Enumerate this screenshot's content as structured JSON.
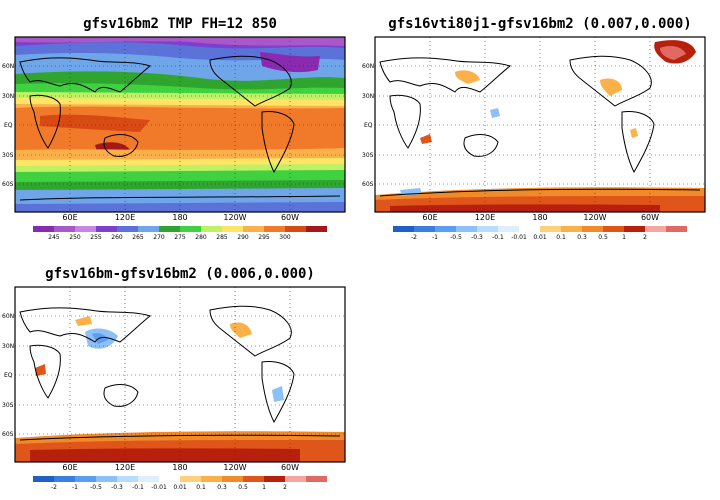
{
  "panels": [
    {
      "title": "gfsv16bm2  TMP  FH=12  850",
      "lat_labels": [
        "60N",
        "30N",
        "EQ",
        "30S",
        "60S"
      ],
      "lon_labels": [
        "60E",
        "120E",
        "180",
        "120W",
        "60W"
      ],
      "colorbar": {
        "labels": [
          "245",
          "250",
          "255",
          "260",
          "265",
          "270",
          "275",
          "280",
          "285",
          "290",
          "295",
          "300"
        ],
        "colors": [
          "#8a2ab0",
          "#a958c8",
          "#c488e0",
          "#7d3fcf",
          "#5b72d8",
          "#6fa6ea",
          "#2fa52f",
          "#3fd13f",
          "#bff066",
          "#ffe566",
          "#fbb04a",
          "#f07a2a",
          "#d84a14",
          "#a41818"
        ]
      }
    },
    {
      "title": "gfs16vti80j1-gfsv16bm2  (0.007,0.000)",
      "lat_labels": [
        "60N",
        "30N",
        "EQ",
        "30S",
        "60S"
      ],
      "lon_labels": [
        "60E",
        "120E",
        "180",
        "120W",
        "60W"
      ],
      "colorbar": {
        "labels": [
          "-2",
          "-1",
          "-0.5",
          "-0.3",
          "-0.1",
          "-0.01",
          "0.01",
          "0.1",
          "0.3",
          "0.5",
          "1",
          "2"
        ],
        "colors": [
          "#1f5fc8",
          "#3a7fe0",
          "#5a9ef0",
          "#8cc0f6",
          "#b8dcfb",
          "#ddeefd",
          "#ffffff",
          "#ffd07a",
          "#fbb048",
          "#f08a2a",
          "#e0551a",
          "#b8200e",
          "#f4a6a0",
          "#e06a62"
        ]
      }
    },
    {
      "title": "gfsv16bm-gfsv16bm2  (0.006,0.000)",
      "lat_labels": [
        "60N",
        "30N",
        "EQ",
        "30S",
        "60S"
      ],
      "lon_labels": [
        "60E",
        "120E",
        "180",
        "120W",
        "60W"
      ],
      "colorbar": {
        "labels": [
          "-2",
          "-1",
          "-0.5",
          "-0.3",
          "-0.1",
          "-0.01",
          "0.01",
          "0.1",
          "0.3",
          "0.5",
          "1",
          "2"
        ],
        "colors": [
          "#1f5fc8",
          "#3a7fe0",
          "#5a9ef0",
          "#8cc0f6",
          "#b8dcfb",
          "#ddeefd",
          "#ffffff",
          "#ffd07a",
          "#fbb048",
          "#f08a2a",
          "#e0551a",
          "#b8200e",
          "#f4a6a0",
          "#e06a62"
        ]
      }
    }
  ]
}
